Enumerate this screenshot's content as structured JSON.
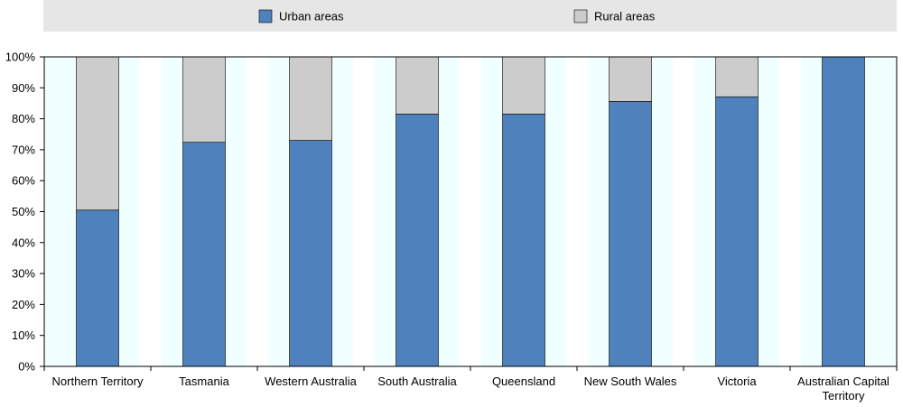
{
  "chart_data": {
    "type": "bar",
    "stacked": true,
    "categories": [
      [
        "Northern Territory"
      ],
      [
        "Tasmania"
      ],
      [
        "Western Australia"
      ],
      [
        "South Australia"
      ],
      [
        "Queensland"
      ],
      [
        "New South Wales"
      ],
      [
        "Victoria"
      ],
      [
        "Australian Capital",
        "Territory"
      ]
    ],
    "series": [
      {
        "name": "Urban areas",
        "color": "#4f81bd",
        "values": [
          50.5,
          72.4,
          73.0,
          81.5,
          81.5,
          85.6,
          87.1,
          100.0
        ]
      },
      {
        "name": "Rural areas",
        "color": "#cccccc",
        "values": [
          49.5,
          27.6,
          27.0,
          18.5,
          18.5,
          14.4,
          12.9,
          0.0
        ]
      }
    ],
    "ylim": [
      0,
      100
    ],
    "yticks": [
      "0%",
      "10%",
      "20%",
      "30%",
      "40%",
      "50%",
      "60%",
      "70%",
      "80%",
      "90%",
      "100%"
    ],
    "legend_position": "top",
    "plot_background": "#f0ffff",
    "legend_background": "#e6e6e6",
    "grid": false
  }
}
